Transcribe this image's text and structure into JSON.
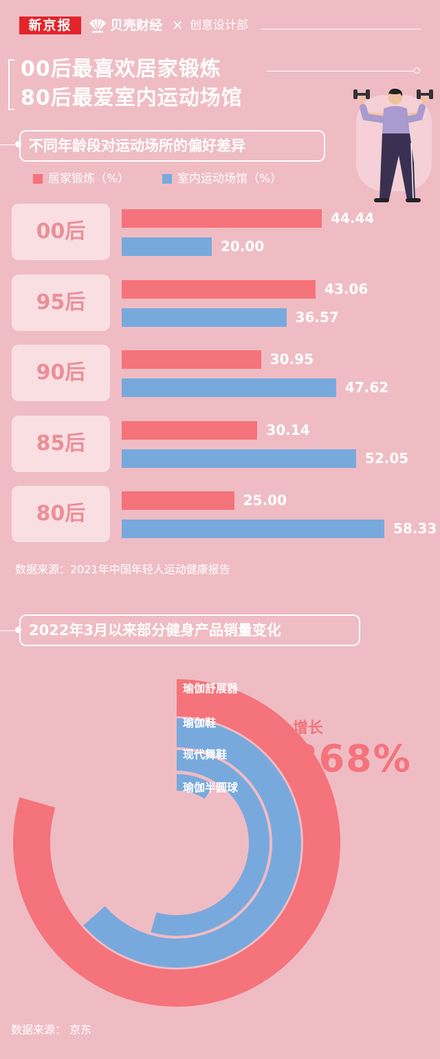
{
  "header": {
    "brand1": "新京报",
    "brand2": "贝壳财经",
    "separator": "×",
    "brand3": "创意设计部"
  },
  "title": {
    "line1": "00后最喜欢居家锻炼",
    "line2": "80后最爱室内运动场馆"
  },
  "section1": {
    "heading": "不同年龄段对运动场所的偏好差异",
    "source": "数据来源：2021年中国年轻人运动健康报告"
  },
  "section2": {
    "heading": "2022年3月以来部分健身产品销量变化",
    "source": "数据来源：  京东",
    "growth_label": "增长",
    "growth_value": "868%"
  },
  "colors": {
    "red": "#f5737b",
    "blue": "#78a9dd",
    "background": "#efbcc4",
    "card": "#f9dfe2",
    "card_text": "#ea8f98"
  },
  "chart_data": [
    {
      "type": "bar",
      "orientation": "horizontal",
      "categories": [
        "00后",
        "95后",
        "90后",
        "85后",
        "80后"
      ],
      "series": [
        {
          "name": "居家锻炼（%）",
          "values": [
            44.44,
            43.06,
            30.95,
            30.14,
            25.0
          ],
          "labels": [
            "44.44",
            "43.06",
            "30.95",
            "30.14",
            "25.00"
          ],
          "color": "#f5737b"
        },
        {
          "name": "室内运动场馆（%）",
          "values": [
            20.0,
            36.57,
            47.62,
            52.05,
            58.33
          ],
          "labels": [
            "20.00",
            "36.57",
            "47.62",
            "52.05",
            "58.33"
          ],
          "color": "#78a9dd"
        }
      ],
      "legend": "top-left",
      "grid": false
    },
    {
      "type": "radial_bar",
      "categories": [
        "瑜伽舒展器",
        "瑜伽鞋",
        "现代舞鞋",
        "瑜伽半圆球"
      ],
      "arc_fractions": [
        0.795,
        0.635,
        0.545,
        0.09
      ],
      "colors": [
        "#f5737b",
        "#78a9dd",
        "#78a9dd",
        "#78a9dd"
      ],
      "annotation": "增长 868%"
    }
  ]
}
